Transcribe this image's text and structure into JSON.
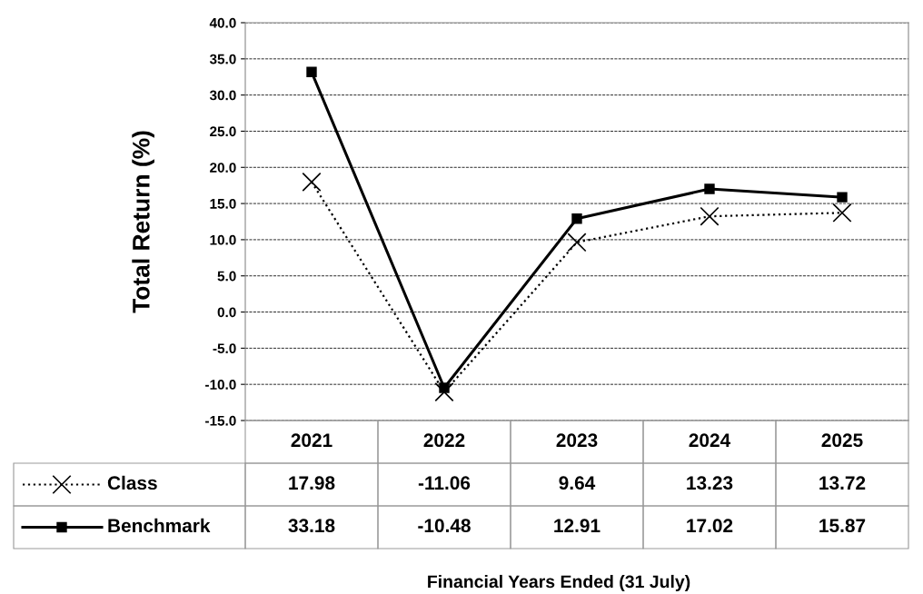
{
  "chart_data": {
    "type": "line",
    "ylabel": "Total Return (%)",
    "annotations": [
      "Financial Years Ended (31 July)"
    ],
    "categories": [
      "2021",
      "2022",
      "2023",
      "2024",
      "2025"
    ],
    "series": [
      {
        "name": "Class",
        "color": "#000000",
        "values": [
          17.98,
          -11.06,
          9.64,
          13.23,
          13.72
        ],
        "marker": "cross",
        "line_style": "dotted"
      },
      {
        "name": "Benchmark",
        "color": "#000000",
        "values": [
          33.18,
          -10.48,
          12.91,
          17.02,
          15.87
        ],
        "marker": "square",
        "line_style": "solid"
      }
    ],
    "ylim": [
      -15,
      40
    ],
    "yticks": [
      {
        "value": -15,
        "label": "-15.0"
      },
      {
        "value": -10,
        "label": "-10.0"
      },
      {
        "value": -5,
        "label": "-5.0"
      },
      {
        "value": 0,
        "label": "0.0"
      },
      {
        "value": 5,
        "label": "5.0"
      },
      {
        "value": 10,
        "label": "10.0"
      },
      {
        "value": 15,
        "label": "15.0"
      },
      {
        "value": 20,
        "label": "20.0"
      },
      {
        "value": 25,
        "label": "25.0"
      },
      {
        "value": 30,
        "label": "30.0"
      },
      {
        "value": 35,
        "label": "35.0"
      },
      {
        "value": 40,
        "label": "40.0"
      }
    ],
    "grid": "y",
    "data_labels": true,
    "legend": "bottom left"
  }
}
